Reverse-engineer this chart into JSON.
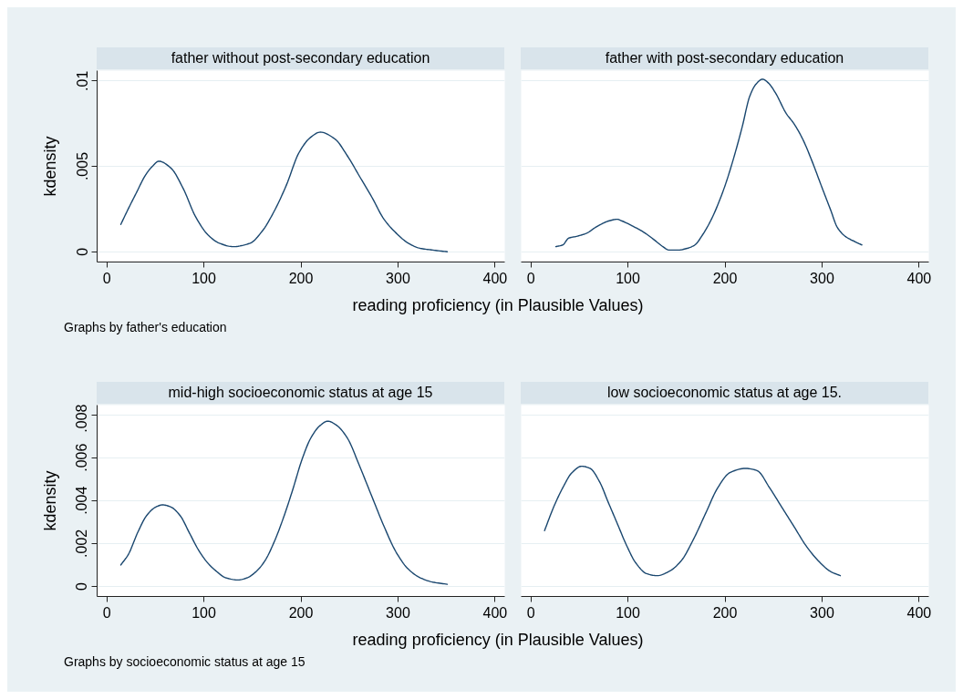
{
  "chart_data": [
    {
      "type": "line",
      "title": "father without post-secondary education",
      "xlabel": "reading proficiency (in Plausible Values)",
      "ylabel": "kdensity",
      "annotations": [
        "Graphs by father's education"
      ],
      "x": [
        14.4,
        22,
        30,
        40,
        47,
        53.6,
        66,
        78.7,
        91,
        104,
        116,
        130,
        147.6,
        160,
        172.7,
        185,
        198,
        210,
        220,
        235,
        248,
        260.5,
        273,
        285.6,
        298,
        310.7,
        323,
        335.8,
        350.8
      ],
      "series": [
        {
          "color": "#1a476f",
          "values": [
            0.0016,
            0.0025,
            0.0034,
            0.0045,
            0.005,
            0.0053,
            0.0049,
            0.0037,
            0.0021,
            0.001,
            0.0005,
            0.0003,
            0.0005,
            0.0012,
            0.0024,
            0.0039,
            0.0058,
            0.0067,
            0.007,
            0.0066,
            0.0056,
            0.0044,
            0.0032,
            0.0019,
            0.0011,
            0.0005,
            0.0002,
            0.0001,
            0
          ]
        }
      ],
      "xlim": [
        -10,
        410
      ],
      "xticks": [
        0,
        100,
        200,
        300,
        400
      ],
      "ylim": [
        -0.0006,
        0.0106
      ],
      "yticks": [
        0,
        {
          "value": 0.005,
          "label": ".005"
        },
        {
          "value": 0.01,
          "label": ".01"
        }
      ],
      "grid": "y"
    },
    {
      "type": "line",
      "title": "father with post-secondary education",
      "x": [
        25.7,
        32.9,
        39,
        47,
        58,
        65.8,
        72,
        80,
        89,
        94,
        105,
        117.5,
        127,
        136,
        142.5,
        152,
        161,
        169,
        177,
        186,
        199,
        208,
        217.7,
        225.5,
        231.8,
        238.7,
        244.3,
        252,
        263,
        271,
        280,
        289.7,
        299,
        308.5,
        316,
        324,
        333.5,
        341
      ],
      "series": [
        {
          "color": "#1a476f",
          "values": [
            0.0003,
            0.0004,
            0.0008,
            0.0009,
            0.0011,
            0.0014,
            0.0016,
            0.0018,
            0.0019,
            0.0018,
            0.0015,
            0.0011,
            0.0007,
            0.0003,
            0.0001,
            0.0001,
            0.0002,
            0.0004,
            0.001,
            0.0019,
            0.0037,
            0.0053,
            0.0073,
            0.0091,
            0.0098,
            0.0101,
            0.0099,
            0.0093,
            0.0081,
            0.0075,
            0.0066,
            0.0053,
            0.0039,
            0.0025,
            0.0014,
            0.0009,
            0.0006,
            0.0004
          ]
        }
      ],
      "xlim": [
        -10,
        410
      ],
      "xticks": [
        0,
        100,
        200,
        300,
        400
      ],
      "ylim": [
        -0.0006,
        0.0106
      ],
      "yticks": [
        0,
        0.005,
        0.01
      ],
      "grid": "y",
      "tick_labels": "x"
    },
    {
      "type": "line",
      "title": "mid-high socioeconomic status at age 15",
      "xlabel": "reading proficiency (in Plausible Values)",
      "ylabel": "kdensity",
      "annotations": [
        "Graphs by socioeconomic status at age 15"
      ],
      "x": [
        14.4,
        22.3,
        31.7,
        41,
        50.5,
        57.4,
        66,
        75.5,
        85,
        94.4,
        103.8,
        113,
        122.6,
        135,
        144.5,
        154,
        163,
        172.7,
        182,
        191.5,
        201,
        210,
        219.8,
        227.6,
        237,
        248,
        260.5,
        273,
        285.6,
        298,
        310.7,
        323,
        335.8,
        350.8
      ],
      "series": [
        {
          "color": "#1a476f",
          "values": [
            0.001,
            0.0015,
            0.0025,
            0.0033,
            0.0037,
            0.0038,
            0.0037,
            0.0033,
            0.0025,
            0.0017,
            0.0011,
            0.0007,
            0.0004,
            0.0003,
            0.0004,
            0.0007,
            0.0012,
            0.0021,
            0.0032,
            0.0045,
            0.0059,
            0.0069,
            0.0075,
            0.0077,
            0.0075,
            0.0069,
            0.0056,
            0.0042,
            0.0028,
            0.0016,
            0.0008,
            0.0004,
            0.0002,
            0.0001
          ]
        }
      ],
      "xlim": [
        -10,
        410
      ],
      "xticks": [
        0,
        100,
        200,
        300,
        400
      ],
      "ylim": [
        -0.00047,
        0.00845
      ],
      "yticks": [
        0,
        {
          "value": 0.002,
          "label": ".002"
        },
        {
          "value": 0.004,
          "label": ".004"
        },
        {
          "value": 0.006,
          "label": ".006"
        },
        {
          "value": 0.008,
          "label": ".008"
        }
      ],
      "grid": "y"
    },
    {
      "type": "line",
      "title": "low socioeconomic status at age 15.",
      "x": [
        14.1,
        23.5,
        32.9,
        42.3,
        52.3,
        61,
        70.5,
        79.9,
        89.3,
        98.7,
        108,
        119,
        130,
        142.5,
        155,
        167.6,
        180,
        192.6,
        205,
        220.8,
        233,
        245.9,
        258.4,
        271,
        283.4,
        296,
        308.5,
        318.8
      ],
      "series": [
        {
          "color": "#1a476f",
          "values": [
            0.0026,
            0.0037,
            0.0046,
            0.0053,
            0.0056,
            0.0055,
            0.0049,
            0.0039,
            0.0029,
            0.0019,
            0.0011,
            0.0006,
            0.0005,
            0.0007,
            0.0012,
            0.0022,
            0.0034,
            0.0046,
            0.0053,
            0.0055,
            0.0054,
            0.0046,
            0.0037,
            0.0028,
            0.0019,
            0.0012,
            0.0007,
            0.0005
          ]
        }
      ],
      "xlim": [
        -10,
        410
      ],
      "xticks": [
        0,
        100,
        200,
        300,
        400
      ],
      "ylim": [
        -0.00047,
        0.00845
      ],
      "yticks": [
        0,
        0.002,
        0.004,
        0.006,
        0.008
      ],
      "grid": "y",
      "tick_labels": "x"
    }
  ]
}
